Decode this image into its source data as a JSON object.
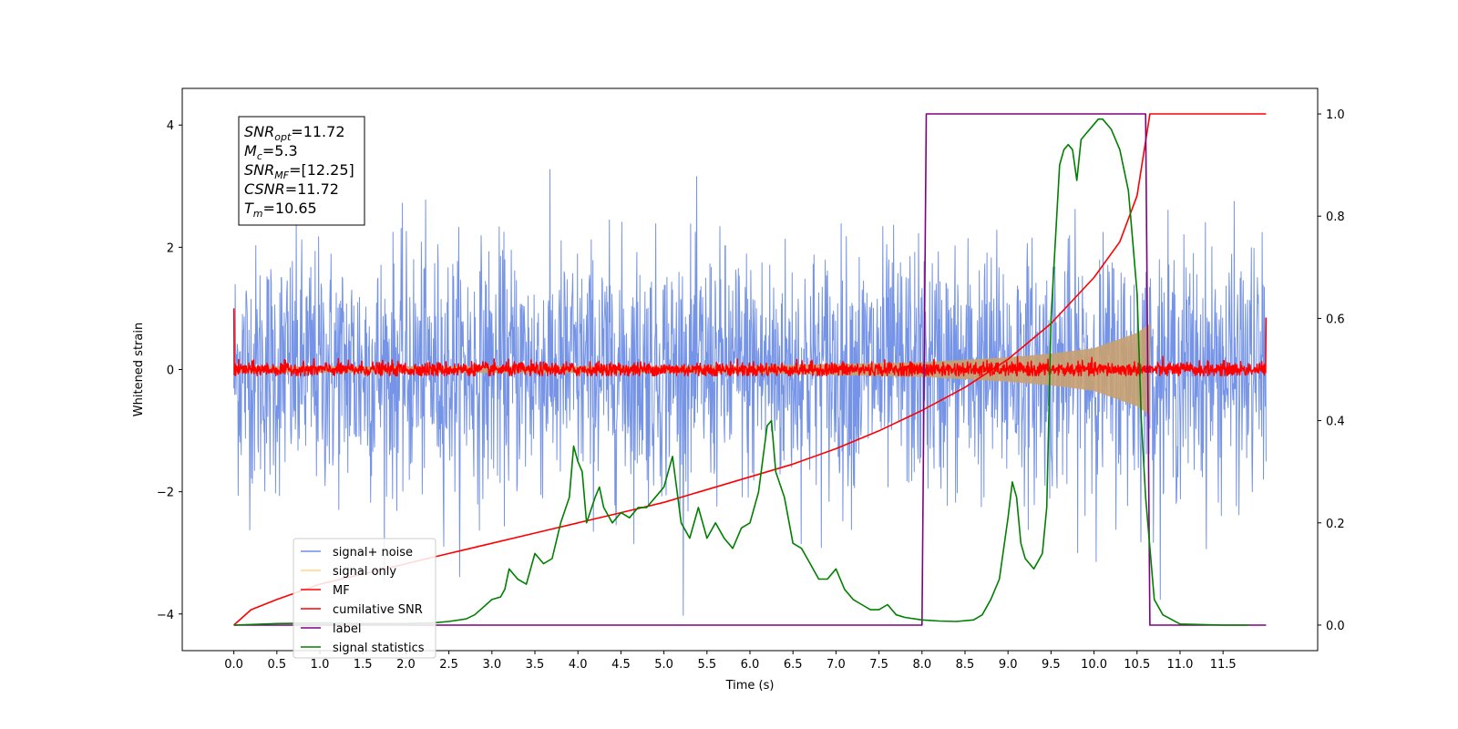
{
  "chart_data": {
    "type": "line",
    "xlabel": "Time (s)",
    "ylabel": "Whitened strain",
    "xlim": [
      -0.6,
      12.6
    ],
    "ylim": [
      -4.6,
      4.6
    ],
    "y2lim": [
      -0.05,
      1.05
    ],
    "xticks": [
      0.0,
      0.5,
      1.0,
      1.5,
      2.0,
      2.5,
      3.0,
      3.5,
      4.0,
      4.5,
      5.0,
      5.5,
      6.0,
      6.5,
      7.0,
      7.5,
      8.0,
      8.5,
      9.0,
      9.5,
      10.0,
      10.5,
      11.0,
      11.5
    ],
    "xtick_labels": [
      "0.0",
      "0.5",
      "1.0",
      "1.5",
      "2.0",
      "2.5",
      "3.0",
      "3.5",
      "4.0",
      "4.5",
      "5.0",
      "5.5",
      "6.0",
      "6.5",
      "7.0",
      "7.5",
      "8.0",
      "8.5",
      "9.0",
      "9.5",
      "10.0",
      "10.5",
      "11.0",
      "11.5"
    ],
    "yticks": [
      -4,
      -2,
      0,
      2,
      4
    ],
    "ytick_labels": [
      "−4",
      "−2",
      "0",
      "2",
      "4"
    ],
    "y2ticks": [
      0.0,
      0.2,
      0.4,
      0.6,
      0.8,
      1.0
    ],
    "y2tick_labels": [
      "0.0",
      "0.2",
      "0.4",
      "0.6",
      "0.8",
      "1.0"
    ],
    "grid": false,
    "legend_position": "bottom-left",
    "annotation": [
      {
        "base": "SNR",
        "sub": "opt",
        "rest": "=11.72"
      },
      {
        "base": "M",
        "sub": "c",
        "rest": "=5.3"
      },
      {
        "base": "SNR",
        "sub": "MF",
        "rest": "=[12.25]"
      },
      {
        "base": "CSNR",
        "sub": "",
        "rest": "=11.72"
      },
      {
        "base": "T",
        "sub": "m",
        "rest": "=10.65"
      }
    ],
    "series": [
      {
        "name": "signal+ noise",
        "axis": "left",
        "color": "#6f8ee6",
        "kind": "noise",
        "x_range": [
          0.0,
          12.0
        ],
        "mean": 0.0,
        "std": 1.0,
        "min": -4.1,
        "max": 4.15
      },
      {
        "name": "signal only",
        "axis": "left",
        "color": "#c8a070",
        "kind": "chirp",
        "x_range": [
          0.0,
          10.65
        ],
        "envelope": [
          [
            0.0,
            0.05
          ],
          [
            6.0,
            0.06
          ],
          [
            8.0,
            0.12
          ],
          [
            9.0,
            0.2
          ],
          [
            9.5,
            0.26
          ],
          [
            10.0,
            0.35
          ],
          [
            10.5,
            0.6
          ],
          [
            10.65,
            0.75
          ]
        ]
      },
      {
        "name": "MF",
        "axis": "left",
        "color": "#ff0000",
        "kind": "noise",
        "x_range": [
          0.0,
          12.0
        ],
        "mean": 0.0,
        "std": 0.06,
        "min": -0.1,
        "max": 1.0
      },
      {
        "name": "cumilative SNR",
        "axis": "right",
        "color": "#ff0000",
        "x": [
          0.0,
          0.2,
          0.5,
          1.0,
          1.5,
          2.0,
          2.5,
          3.0,
          3.5,
          4.0,
          4.5,
          5.0,
          5.5,
          6.0,
          6.5,
          7.0,
          7.5,
          8.0,
          8.5,
          9.0,
          9.5,
          10.0,
          10.3,
          10.5,
          10.65,
          12.0
        ],
        "y": [
          0.0,
          0.03,
          0.05,
          0.08,
          0.1,
          0.12,
          0.14,
          0.16,
          0.18,
          0.2,
          0.22,
          0.24,
          0.265,
          0.29,
          0.315,
          0.345,
          0.38,
          0.42,
          0.465,
          0.52,
          0.59,
          0.68,
          0.75,
          0.84,
          1.0,
          1.0
        ]
      },
      {
        "name": "label",
        "axis": "right",
        "color": "#800080",
        "x": [
          0.0,
          8.0,
          8.05,
          10.6,
          10.65,
          12.0
        ],
        "y": [
          0.0,
          0.0,
          1.0,
          1.0,
          0.0,
          0.0
        ]
      },
      {
        "name": "signal statistics",
        "axis": "right",
        "color": "#008000",
        "x": [
          0.0,
          0.5,
          1.0,
          1.5,
          2.0,
          2.3,
          2.5,
          2.7,
          2.8,
          2.9,
          3.0,
          3.1,
          3.15,
          3.2,
          3.3,
          3.4,
          3.5,
          3.6,
          3.7,
          3.8,
          3.9,
          3.95,
          4.0,
          4.05,
          4.1,
          4.2,
          4.25,
          4.3,
          4.4,
          4.5,
          4.6,
          4.7,
          4.8,
          4.9,
          5.0,
          5.1,
          5.2,
          5.3,
          5.4,
          5.5,
          5.6,
          5.7,
          5.8,
          5.9,
          6.0,
          6.1,
          6.2,
          6.25,
          6.3,
          6.4,
          6.5,
          6.6,
          6.7,
          6.8,
          6.9,
          7.0,
          7.1,
          7.2,
          7.3,
          7.4,
          7.5,
          7.6,
          7.7,
          7.8,
          8.0,
          8.2,
          8.4,
          8.6,
          8.7,
          8.8,
          8.9,
          9.0,
          9.05,
          9.1,
          9.15,
          9.2,
          9.3,
          9.4,
          9.45,
          9.5,
          9.6,
          9.65,
          9.7,
          9.75,
          9.8,
          9.85,
          9.9,
          10.0,
          10.05,
          10.1,
          10.2,
          10.3,
          10.4,
          10.45,
          10.5,
          10.55,
          10.6,
          10.7,
          10.8,
          11.0,
          11.5,
          11.8
        ],
        "y": [
          0.0,
          0.003,
          0.004,
          0.003,
          0.003,
          0.004,
          0.007,
          0.012,
          0.02,
          0.035,
          0.05,
          0.055,
          0.07,
          0.11,
          0.09,
          0.08,
          0.14,
          0.12,
          0.13,
          0.2,
          0.25,
          0.35,
          0.32,
          0.3,
          0.2,
          0.25,
          0.27,
          0.23,
          0.2,
          0.22,
          0.21,
          0.23,
          0.23,
          0.25,
          0.27,
          0.33,
          0.2,
          0.17,
          0.23,
          0.17,
          0.2,
          0.17,
          0.15,
          0.19,
          0.2,
          0.26,
          0.39,
          0.4,
          0.3,
          0.25,
          0.16,
          0.15,
          0.12,
          0.09,
          0.09,
          0.11,
          0.07,
          0.05,
          0.04,
          0.03,
          0.03,
          0.04,
          0.02,
          0.015,
          0.01,
          0.008,
          0.007,
          0.01,
          0.02,
          0.05,
          0.09,
          0.21,
          0.28,
          0.25,
          0.16,
          0.13,
          0.11,
          0.14,
          0.23,
          0.6,
          0.9,
          0.93,
          0.94,
          0.93,
          0.87,
          0.95,
          0.96,
          0.98,
          0.99,
          0.99,
          0.97,
          0.93,
          0.85,
          0.75,
          0.65,
          0.4,
          0.25,
          0.05,
          0.02,
          0.002,
          0.0,
          0.0
        ]
      }
    ]
  }
}
